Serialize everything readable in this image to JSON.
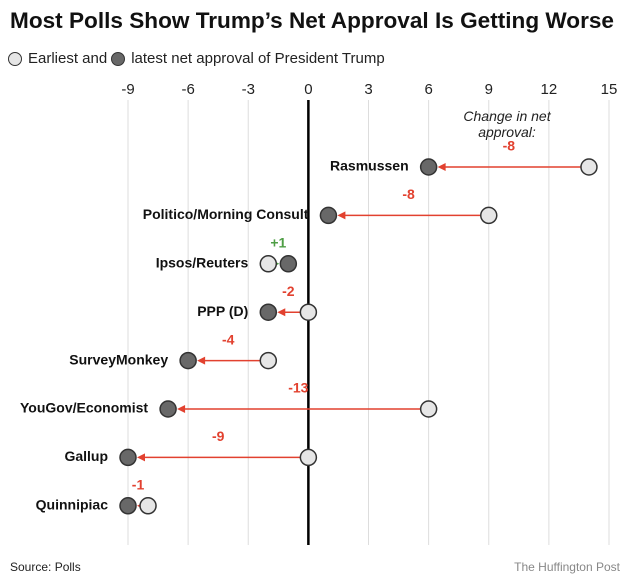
{
  "chart_data": {
    "type": "dot-arrow",
    "title": "Most Polls Show Trump’s Net Approval Is Getting Worse",
    "categories": [
      "Rasmussen",
      "Politico/Morning Consult",
      "Ipsos/Reuters",
      "PPP (D)",
      "SurveyMonkey",
      "YouGov/Economist",
      "Gallup",
      "Quinnipiac"
    ],
    "series": [
      {
        "name": "Earliest and",
        "color": "#e6e6e6",
        "values": [
          14,
          9,
          -2,
          0,
          -2,
          6,
          0,
          -8
        ]
      },
      {
        "name": "latest net approval of President Trump",
        "color": "#686868",
        "values": [
          6,
          1,
          -1,
          -2,
          -6,
          -7,
          -9,
          -9
        ]
      }
    ],
    "change": {
      "name": "Change in net approval:",
      "values": [
        -8,
        -8,
        1,
        -2,
        -4,
        -13,
        -9,
        -1
      ],
      "value_labels": [
        "-8",
        "-8",
        "+1",
        "-2",
        "-4",
        "-13",
        "-9",
        "-1"
      ],
      "negative_color": "#e2412f",
      "positive_color": "#4e9e45"
    },
    "xlim": [
      -9,
      15
    ],
    "xticks": [
      -9,
      -6,
      -3,
      0,
      3,
      6,
      9,
      12,
      15
    ],
    "grid": true,
    "source": "Source: Polls",
    "credit": "The Huffington Post"
  }
}
